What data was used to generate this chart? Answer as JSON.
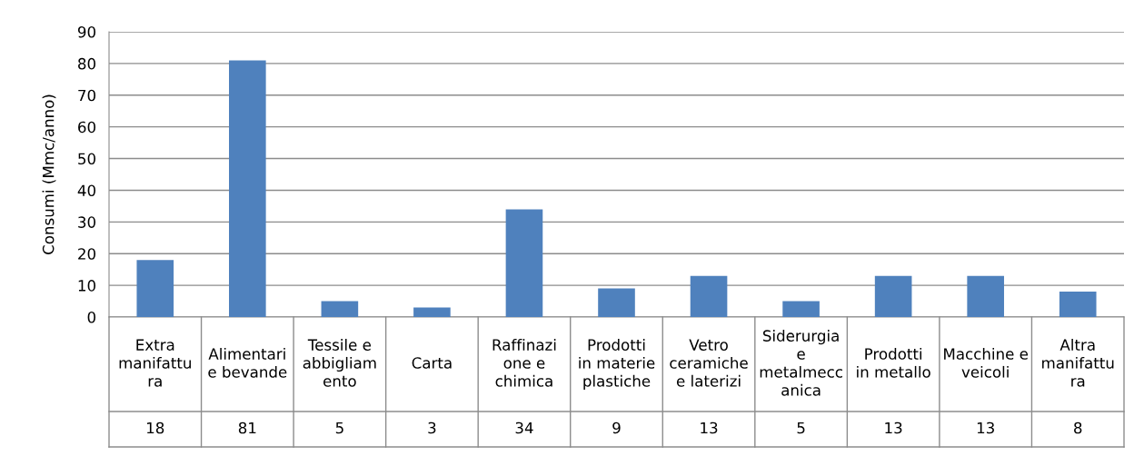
{
  "chart_data": {
    "type": "bar",
    "ylabel": "Consumi (Mmc/anno)",
    "categories": [
      "Extra manifattura",
      "Alimentari e bevande",
      "Tessile e abbigliamento",
      "Carta",
      "Raffinazione e chimica",
      "Prodotti in materie plastiche",
      "Vetro ceramiche e laterizi",
      "Siderurgia e metalmeccanica",
      "Prodotti in metallo",
      "Macchine e veicoli",
      "Altra manifattura"
    ],
    "values": [
      18,
      81,
      5,
      3,
      34,
      9,
      13,
      5,
      13,
      13,
      8
    ],
    "color": "#4f81bd",
    "ylim": [
      0,
      90
    ],
    "yticks": [
      0,
      10,
      20,
      30,
      40,
      50,
      60,
      70,
      80,
      90
    ],
    "grid": "y",
    "data_labels": true,
    "legend": false
  }
}
